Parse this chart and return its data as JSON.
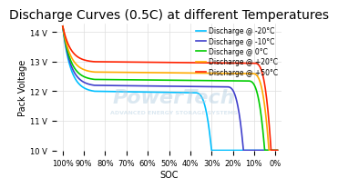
{
  "title": "Discharge Curves (0.5C) at different Temperatures",
  "xlabel": "SOC",
  "ylabel": "Pack Voltage",
  "ylim": [
    10,
    14.3
  ],
  "yticks": [
    10,
    11,
    12,
    13,
    14
  ],
  "ytick_labels": [
    "10 V",
    "11 V",
    "12 V",
    "13 V",
    "14 V"
  ],
  "xticks": [
    100,
    90,
    80,
    70,
    60,
    50,
    40,
    30,
    20,
    10,
    0
  ],
  "xtick_labels": [
    "100%",
    "90%",
    "80%",
    "70%",
    "60%",
    "50%",
    "40%",
    "30%",
    "20%",
    "10%",
    "0%"
  ],
  "background_color": "#ffffff",
  "grid_color": "#dddddd",
  "series": [
    {
      "label": "Discharge @ -20°C",
      "color": "#00bfff",
      "peak_voltage": 14.2,
      "plateau_voltage": 12.0,
      "min_voltage": 10.0,
      "end_soc": 30
    },
    {
      "label": "Discharge @ -10°C",
      "color": "#4040cc",
      "peak_voltage": 14.2,
      "plateau_voltage": 12.2,
      "min_voltage": 10.0,
      "end_soc": 15
    },
    {
      "label": "Discharge @ 0°C",
      "color": "#00cc00",
      "peak_voltage": 14.2,
      "plateau_voltage": 12.4,
      "min_voltage": 10.0,
      "end_soc": 5
    },
    {
      "label": "Discharge @ +20°C",
      "color": "#ffaa00",
      "peak_voltage": 14.2,
      "plateau_voltage": 12.65,
      "min_voltage": 10.0,
      "end_soc": 3
    },
    {
      "label": "Discharge @ +50°C",
      "color": "#ff2200",
      "peak_voltage": 14.2,
      "plateau_voltage": 13.0,
      "min_voltage": 10.0,
      "end_soc": 2
    }
  ],
  "watermark_text1": "PowerTech",
  "watermark_text2": "ADVANCED ENERGY STORAGE SYSTEMS",
  "watermark_color": "#b0cce0",
  "watermark_alpha": 0.45,
  "title_fontsize": 10,
  "axis_label_fontsize": 7,
  "tick_fontsize": 6,
  "legend_fontsize": 5.5
}
